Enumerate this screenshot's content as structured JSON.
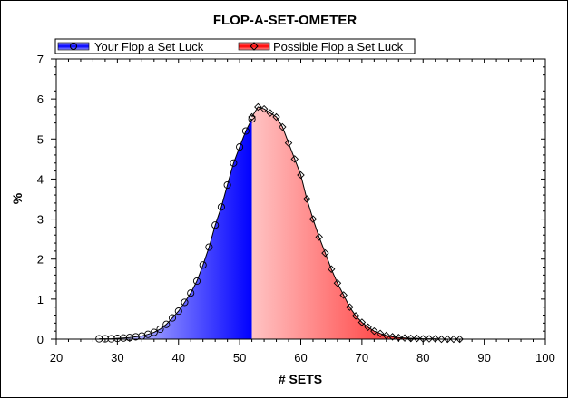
{
  "chart_data": {
    "type": "area",
    "title": "FLOP-A-SET-OMETER",
    "xlabel": "# SETS",
    "ylabel": "%",
    "xlim": [
      20,
      100
    ],
    "ylim": [
      0,
      7
    ],
    "xticks": [
      20,
      30,
      40,
      50,
      60,
      70,
      80,
      90,
      100
    ],
    "yticks": [
      0,
      1,
      2,
      3,
      4,
      5,
      6,
      7
    ],
    "legend_position": "top-left",
    "grid": false,
    "split_x": 52,
    "series": [
      {
        "name": "Your Flop a Set Luck",
        "color": "#0000ff",
        "marker": "circle",
        "x": [
          27,
          28,
          29,
          30,
          31,
          32,
          33,
          34,
          35,
          36,
          37,
          38,
          39,
          40,
          41,
          42,
          43,
          44,
          45,
          46,
          47,
          48,
          49,
          50,
          51,
          52
        ],
        "y": [
          0.01,
          0.01,
          0.01,
          0.02,
          0.03,
          0.04,
          0.06,
          0.08,
          0.12,
          0.17,
          0.25,
          0.37,
          0.53,
          0.7,
          0.92,
          1.15,
          1.45,
          1.85,
          2.3,
          2.85,
          3.3,
          3.85,
          4.4,
          4.8,
          5.2,
          5.5
        ]
      },
      {
        "name": "Possible Flop a Set Luck",
        "color": "#ff0000",
        "marker": "diamond",
        "x": [
          52,
          53,
          54,
          55,
          56,
          57,
          58,
          59,
          60,
          61,
          62,
          63,
          64,
          65,
          66,
          67,
          68,
          69,
          70,
          71,
          72,
          73,
          74,
          75,
          76,
          77,
          78,
          79,
          80,
          81,
          82,
          83,
          84,
          85,
          86
        ],
        "y": [
          5.55,
          5.8,
          5.75,
          5.65,
          5.55,
          5.3,
          4.9,
          4.5,
          4.1,
          3.5,
          3.0,
          2.55,
          2.15,
          1.75,
          1.4,
          1.1,
          0.8,
          0.58,
          0.42,
          0.3,
          0.2,
          0.14,
          0.09,
          0.06,
          0.04,
          0.03,
          0.02,
          0.02,
          0.01,
          0.01,
          0.01,
          0.0,
          0.0,
          0.0,
          0.0
        ]
      }
    ]
  }
}
